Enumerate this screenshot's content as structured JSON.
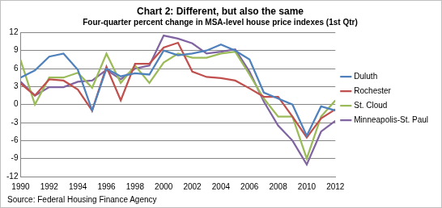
{
  "chart_data": {
    "type": "line",
    "title": "Chart 2: Different, but also the same",
    "subtitle": "Four-quarter percent change in MSA-level house price indexes (1st Qtr)",
    "source": "Source: Federal Housing Finance Agency",
    "x": [
      1990,
      1991,
      1992,
      1993,
      1994,
      1995,
      1996,
      1997,
      1998,
      1999,
      2000,
      2001,
      2002,
      2003,
      2004,
      2005,
      2006,
      2007,
      2008,
      2009,
      2010,
      2011,
      2012
    ],
    "xlim": [
      1990,
      2012
    ],
    "xticks": [
      1990,
      1992,
      1994,
      1996,
      1998,
      2000,
      2002,
      2004,
      2006,
      2008,
      2010,
      2012
    ],
    "ylim": [
      -12,
      12
    ],
    "yticks": [
      -12,
      -9,
      -6,
      -3,
      0,
      3,
      6,
      9,
      12
    ],
    "grid": true,
    "legend": "right",
    "series": [
      {
        "name": "Duluth",
        "color": "#4f81bd",
        "values": [
          4.5,
          5.7,
          8.0,
          8.5,
          5.8,
          -1.0,
          6.0,
          4.7,
          5.2,
          5.0,
          9.0,
          8.2,
          8.5,
          9.0,
          10.0,
          9.0,
          7.5,
          2.0,
          1.0,
          0.0,
          -5.2,
          -0.3,
          -1.0
        ]
      },
      {
        "name": "Rochester",
        "color": "#c0504d",
        "values": [
          3.5,
          1.5,
          4.2,
          4.0,
          2.5,
          -1.0,
          6.3,
          0.7,
          6.8,
          6.8,
          9.5,
          10.3,
          5.5,
          4.6,
          4.4,
          4.0,
          2.7,
          1.3,
          1.3,
          -2.0,
          -5.5,
          -2.3,
          -0.8
        ]
      },
      {
        "name": "St. Cloud",
        "color": "#9bbb59",
        "values": [
          7.4,
          0.0,
          4.5,
          4.5,
          5.3,
          2.8,
          8.5,
          3.6,
          6.5,
          3.6,
          7.0,
          8.5,
          7.8,
          7.8,
          8.5,
          8.8,
          5.0,
          1.0,
          -2.0,
          -2.0,
          -9.0,
          -2.0,
          0.7
        ]
      },
      {
        "name": "Minneapolis-St. Paul",
        "color": "#8064a2",
        "values": [
          3.8,
          1.5,
          2.9,
          2.9,
          3.8,
          4.0,
          5.8,
          4.2,
          6.0,
          6.5,
          11.5,
          11.0,
          10.2,
          8.5,
          8.8,
          9.2,
          5.5,
          0.5,
          -3.5,
          -6.0,
          -10.0,
          -4.5,
          -2.7
        ]
      }
    ]
  }
}
